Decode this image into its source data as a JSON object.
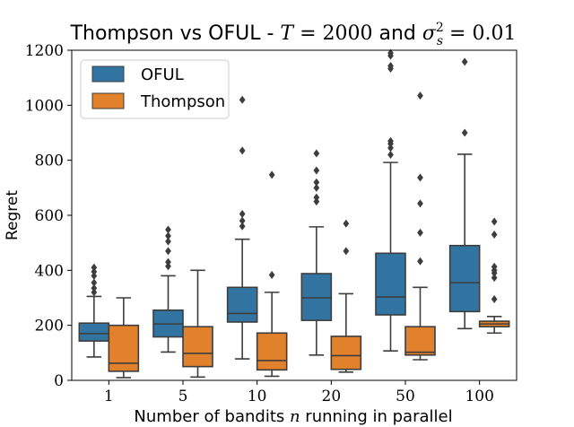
{
  "chart_data": {
    "type": "boxplot",
    "title": {
      "prefix": "Thompson vs OFUL - ",
      "t_var": "T",
      "t_eq": " = 2000",
      "middle": " and ",
      "sigma": "σ",
      "sigma_sup": "2",
      "sigma_sub": "s",
      "sigma_eq": " = 0.01"
    },
    "xlabel": {
      "before": "Number of bandits ",
      "var": "n",
      "after": " running in parallel"
    },
    "ylabel": "Regret",
    "categories": [
      "1",
      "5",
      "10",
      "20",
      "50",
      "100"
    ],
    "ylim": [
      0,
      1200
    ],
    "yticks": [
      0,
      200,
      400,
      600,
      800,
      1000,
      1200
    ],
    "legend_position": "top-left",
    "series": [
      {
        "name": "OFUL",
        "color": "#3274a1",
        "boxes": [
          {
            "whisker_low": 85,
            "q1": 143,
            "median": 170,
            "q3": 208,
            "whisker_high": 305,
            "fliers": [
              320,
              335,
              355,
              380,
              395,
              410
            ]
          },
          {
            "whisker_low": 103,
            "q1": 158,
            "median": 205,
            "q3": 255,
            "whisker_high": 380,
            "fliers": [
              415,
              430,
              470,
              505,
              525,
              548
            ]
          },
          {
            "whisker_low": 78,
            "q1": 212,
            "median": 243,
            "q3": 338,
            "whisker_high": 513,
            "fliers": [
              560,
              580,
              605,
              835,
              1020
            ]
          },
          {
            "whisker_low": 92,
            "q1": 218,
            "median": 300,
            "q3": 388,
            "whisker_high": 558,
            "fliers": [
              650,
              665,
              700,
              720,
              763,
              825
            ]
          },
          {
            "whisker_low": 107,
            "q1": 238,
            "median": 303,
            "q3": 462,
            "whisker_high": 792,
            "fliers": [
              820,
              845,
              860,
              870,
              1133,
              1143,
              1180,
              1190
            ]
          },
          {
            "whisker_low": 188,
            "q1": 250,
            "median": 355,
            "q3": 490,
            "whisker_high": 822,
            "fliers": [
              900,
              1158
            ]
          }
        ]
      },
      {
        "name": "Thompson",
        "color": "#e1812c",
        "boxes": [
          {
            "whisker_low": 10,
            "q1": 33,
            "median": 62,
            "q3": 200,
            "whisker_high": 300,
            "fliers": []
          },
          {
            "whisker_low": 12,
            "q1": 50,
            "median": 98,
            "q3": 195,
            "whisker_high": 400,
            "fliers": []
          },
          {
            "whisker_low": 15,
            "q1": 38,
            "median": 72,
            "q3": 172,
            "whisker_high": 320,
            "fliers": [
              383,
              747
            ]
          },
          {
            "whisker_low": 30,
            "q1": 40,
            "median": 90,
            "q3": 160,
            "whisker_high": 315,
            "fliers": [
              470,
              570
            ]
          },
          {
            "whisker_low": 75,
            "q1": 92,
            "median": 102,
            "q3": 195,
            "whisker_high": 338,
            "fliers": [
              433,
              537,
              643,
              737,
              1035
            ]
          },
          {
            "whisker_low": 172,
            "q1": 195,
            "median": 205,
            "q3": 215,
            "whisker_high": 232,
            "fliers": [
              295,
              373,
              390,
              400,
              413,
              530,
              577
            ]
          }
        ]
      }
    ]
  }
}
